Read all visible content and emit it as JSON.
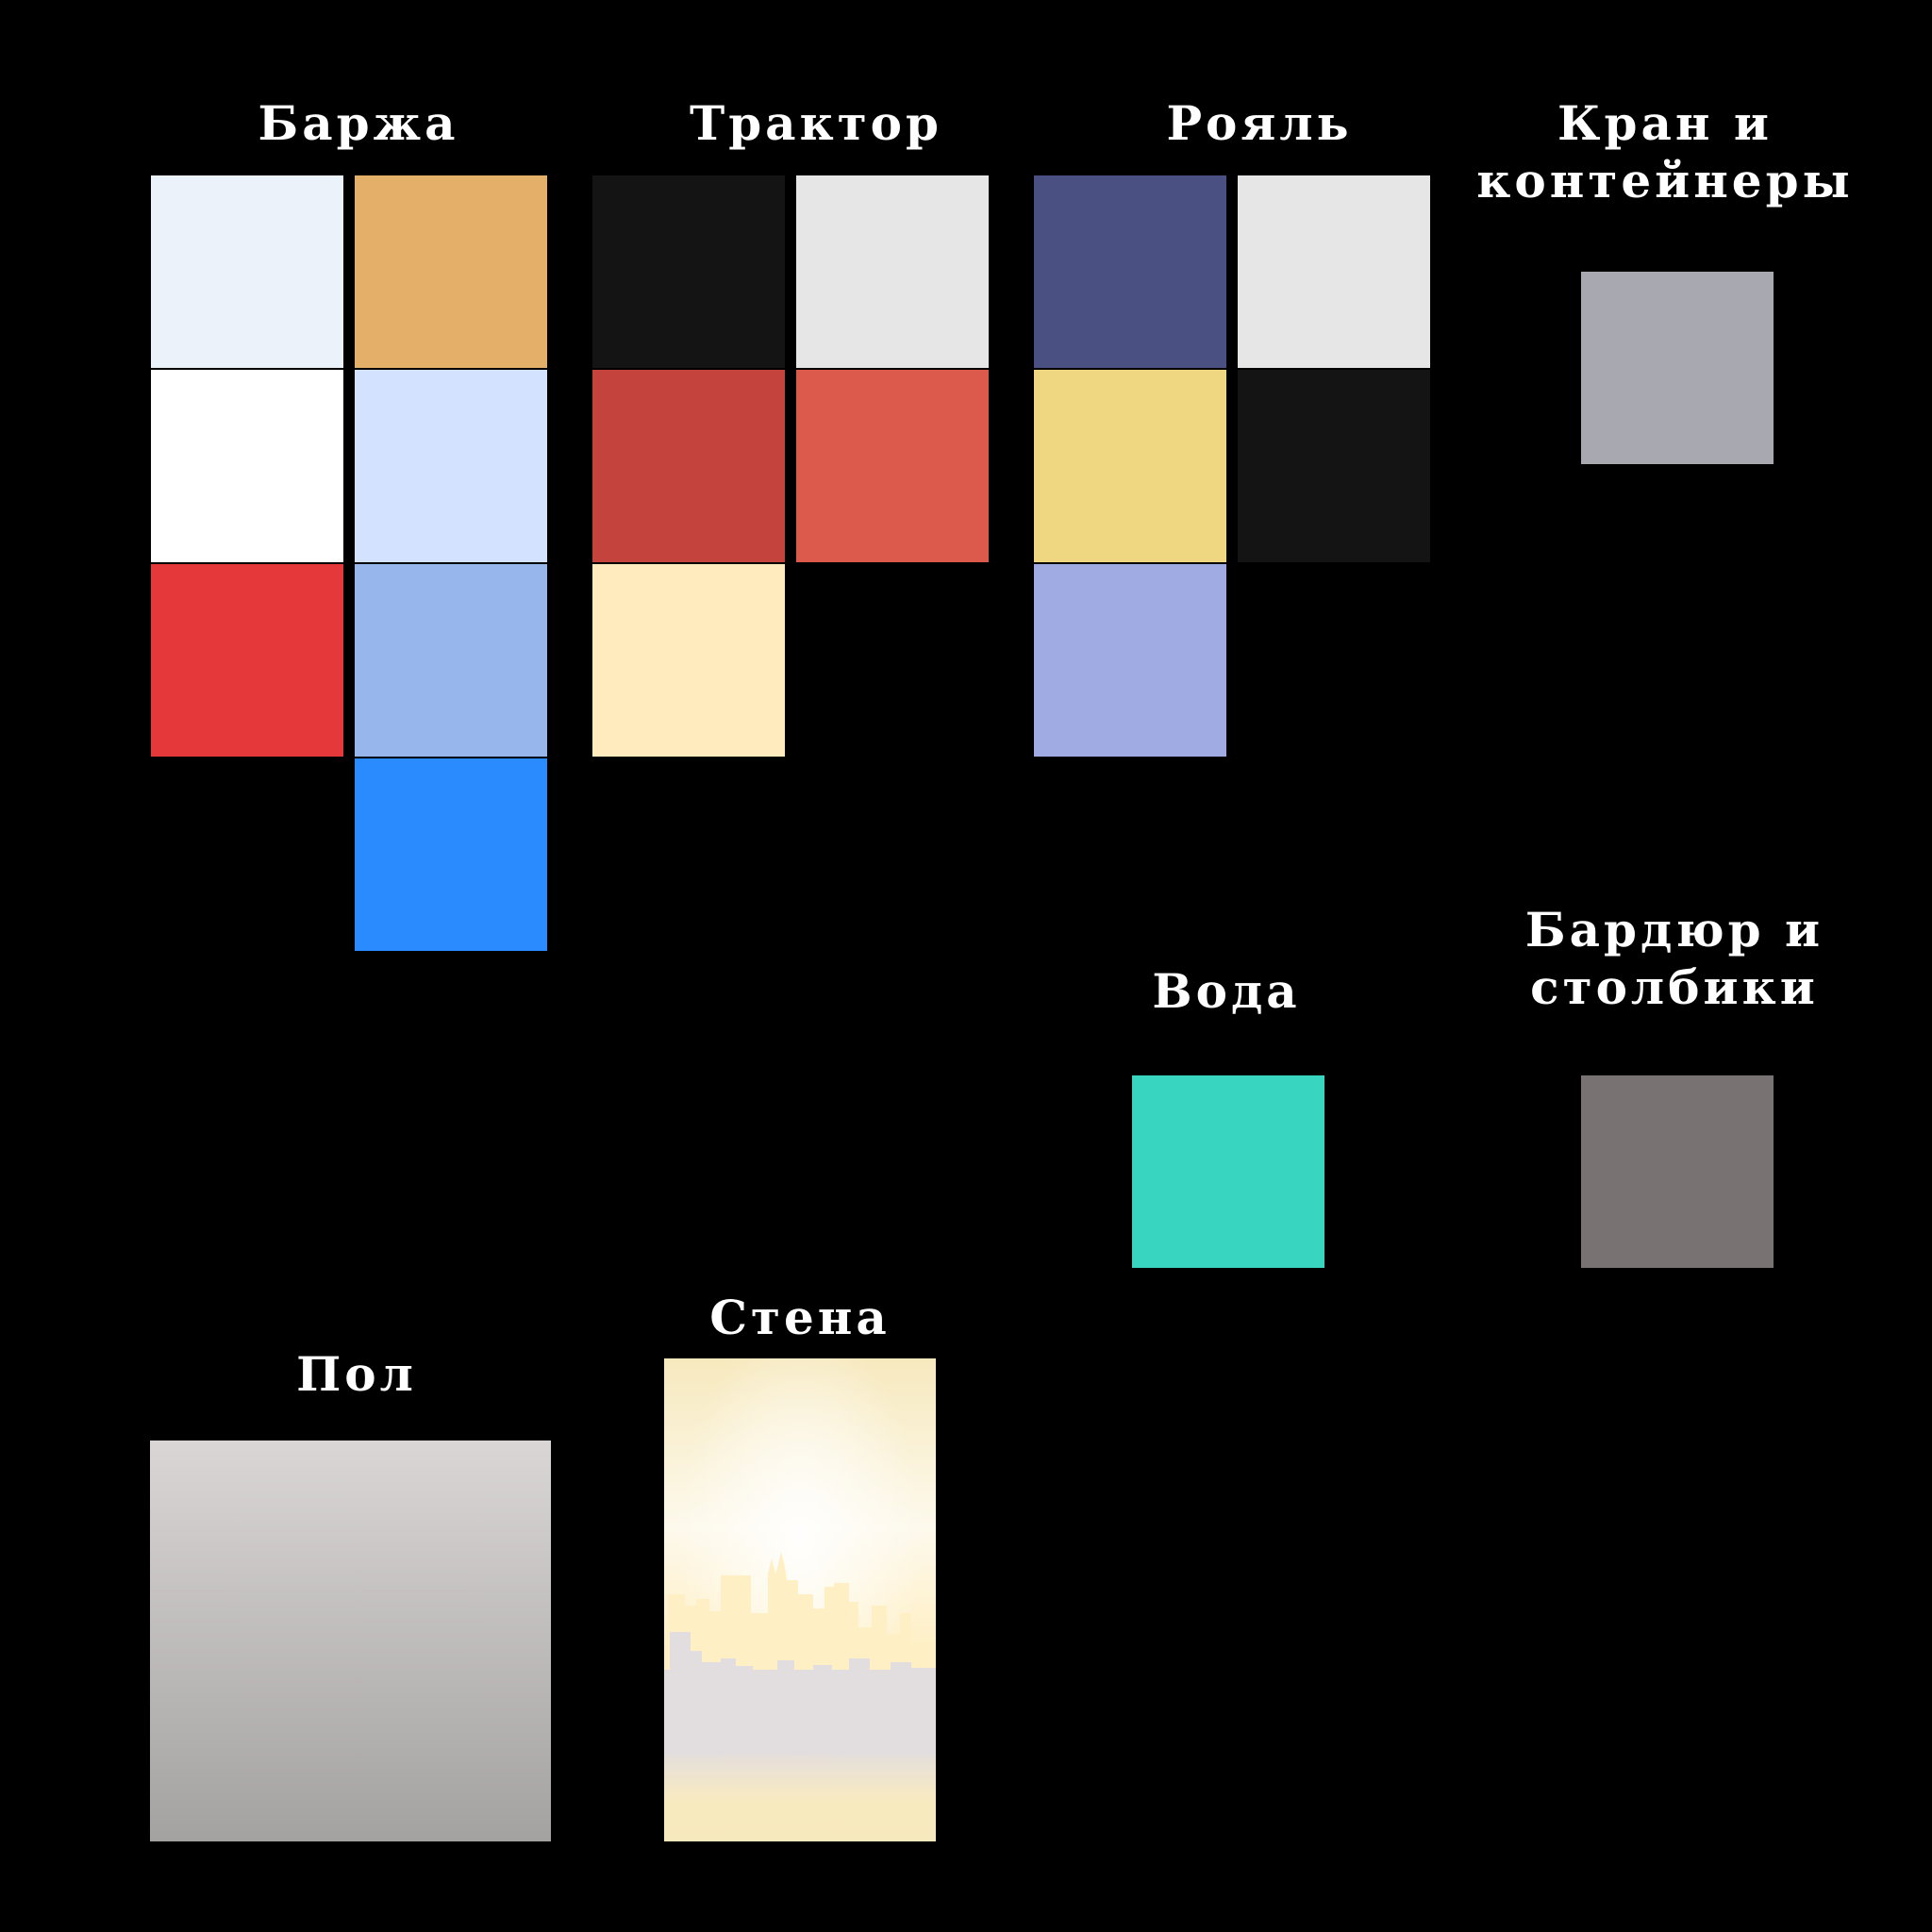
{
  "groups": {
    "barge": {
      "label": "Баржа",
      "colors": [
        "#EBF2FA",
        "#E3AF69",
        "#FFFFFF",
        "#D3E3FF",
        "#E5383A",
        "#97B6EB",
        "#2A8BFF"
      ]
    },
    "tractor": {
      "label": "Трактор",
      "colors": [
        "#141414",
        "#E6E6E6",
        "#C5433D",
        "#DB5A4B",
        "#FFEBBD"
      ]
    },
    "piano": {
      "label": "Рояль",
      "colors": [
        "#4A5082",
        "#E6E6E6",
        "#EFD680",
        "#141414",
        "#9FABE2"
      ]
    },
    "crane": {
      "label": "Кран и контейнеры",
      "colors": [
        "#A8A8B1"
      ]
    },
    "water": {
      "label": "Вода",
      "colors": [
        "#38D6C1"
      ]
    },
    "curb": {
      "label": "Бардюр и столбики",
      "colors": [
        "#787273"
      ]
    },
    "floor": {
      "label": "Пол",
      "gradient": [
        "#DAD6D6",
        "#A4A1A1"
      ]
    },
    "wall": {
      "label": "Стена",
      "colors": [
        "#F7E9BE",
        "#FDF9EC",
        "#FEEFC5",
        "#E2DDDE"
      ]
    }
  }
}
